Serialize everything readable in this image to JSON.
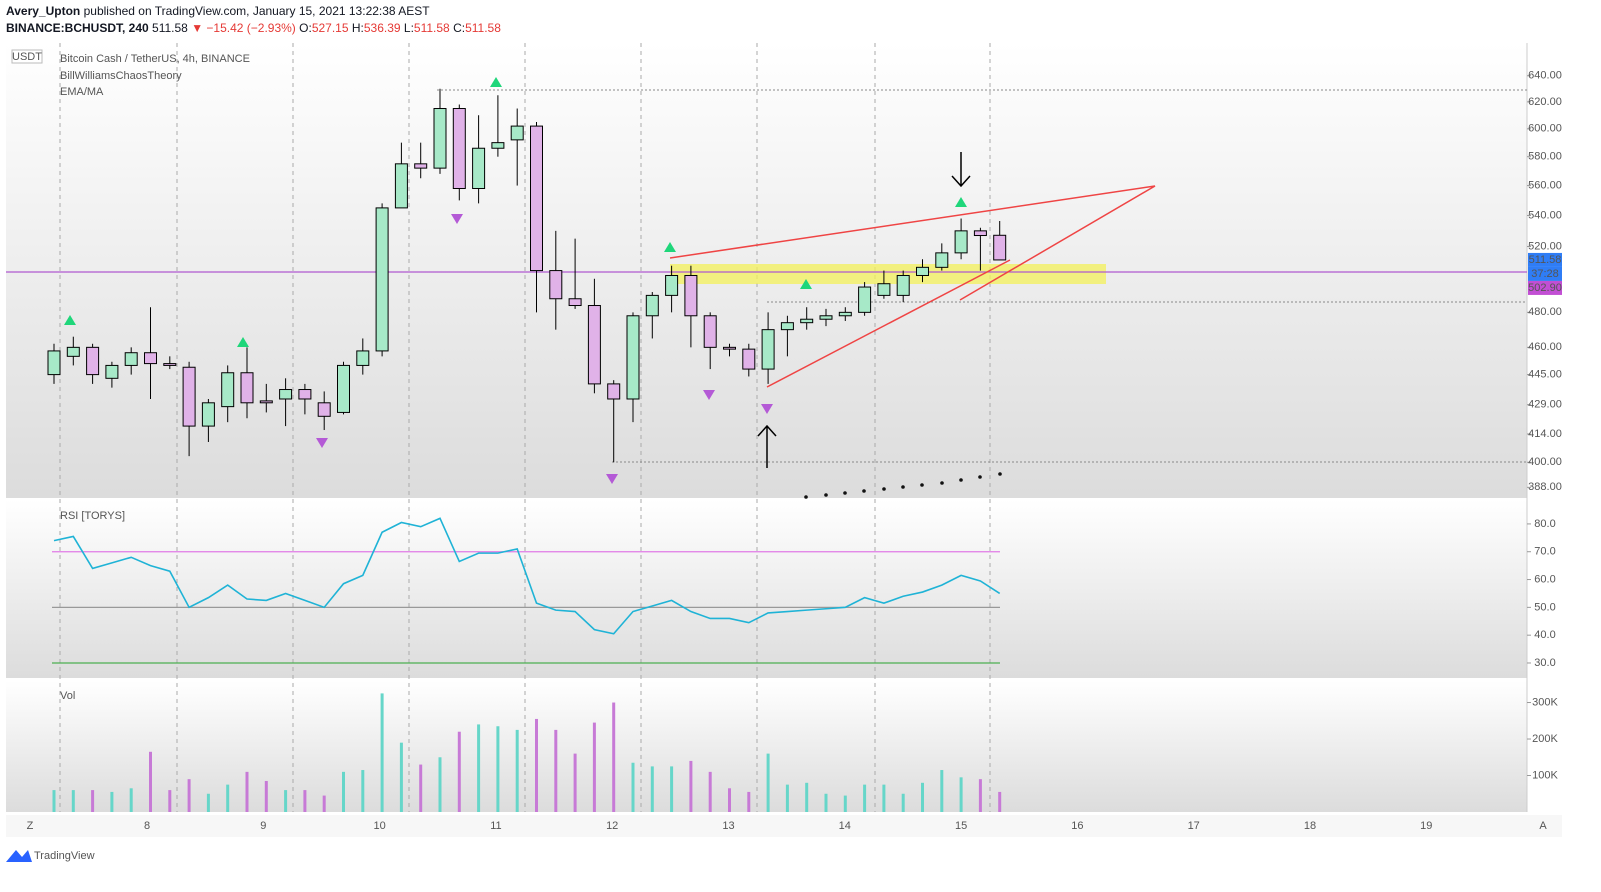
{
  "header": {
    "publisher": "Avery_Upton",
    "published": "published on TradingView.com, January 15, 2021 13:22:38 AEST",
    "symbol": "BINANCE:BCHUSDT, 240",
    "price": "511.58",
    "change": "▼ −15.42 (−2.93%)",
    "ohlc": [
      {
        "label": "O:",
        "value": "527.15"
      },
      {
        "label": "H:",
        "value": "536.39"
      },
      {
        "label": "L:",
        "value": "511.58"
      },
      {
        "label": "C:",
        "value": "511.58"
      }
    ]
  },
  "chart_data": [
    {
      "type": "candlestick",
      "title": "Bitcoin Cash / TetherUS, 4h, BINANCE",
      "indicators": [
        "BillWilliamsChaosTheory",
        "EMA/MA"
      ],
      "unit": "USDT",
      "log_scale": true,
      "up_color": "#a7e9c8",
      "down_color": "#e0b2e8",
      "ylim": [
        383,
        666
      ],
      "yticks": [
        {
          "value": 640,
          "label": "640.00"
        },
        {
          "value": 620,
          "label": "620.00"
        },
        {
          "value": 600,
          "label": "600.00"
        },
        {
          "value": 580,
          "label": "580.00"
        },
        {
          "value": 560,
          "label": "560.00"
        },
        {
          "value": 540,
          "label": "540.00"
        },
        {
          "value": 520,
          "label": "520.00"
        },
        {
          "value": 480,
          "label": "480.00"
        },
        {
          "value": 460,
          "label": "460.00"
        },
        {
          "value": 445,
          "label": "445.00"
        },
        {
          "value": 429,
          "label": "429.00"
        },
        {
          "value": 414,
          "label": "414.00"
        },
        {
          "value": 400,
          "label": "400.00"
        },
        {
          "value": 388,
          "label": "388.00"
        }
      ],
      "last_price": {
        "value": 511.58,
        "label": "511.58"
      },
      "countdown": "37:28",
      "ma_value": {
        "value": 502.9,
        "label": "502.90"
      },
      "candles": {
        "open": [
          445,
          455,
          460,
          443,
          450,
          457,
          451,
          449,
          418,
          428,
          446,
          431,
          432,
          437,
          430,
          425,
          450,
          458,
          545,
          575,
          572,
          615,
          558,
          586,
          592,
          602,
          505,
          488,
          484,
          440,
          432,
          478,
          490,
          502,
          478,
          460,
          459,
          448,
          470,
          474,
          476,
          478,
          480,
          490,
          490,
          502,
          507,
          516,
          530,
          527.15
        ],
        "high": [
          462,
          466,
          462,
          452,
          460,
          483,
          455,
          452,
          432,
          450,
          460,
          440,
          443,
          440,
          436,
          452,
          465,
          548,
          590,
          590,
          630,
          618,
          610,
          625,
          615,
          605,
          530,
          525,
          500,
          442,
          480,
          492,
          508,
          508,
          480,
          462,
          462,
          480,
          478,
          483,
          482,
          483,
          498,
          505,
          505,
          512,
          522,
          538,
          532,
          536.39
        ],
        "low": [
          440,
          450,
          440,
          438,
          445,
          432,
          448,
          403,
          410,
          420,
          422,
          425,
          418,
          424,
          416,
          424,
          445,
          455,
          545,
          565,
          568,
          550,
          548,
          580,
          560,
          480,
          470,
          482,
          435,
          400,
          420,
          465,
          480,
          460,
          448,
          455,
          444,
          440,
          455,
          470,
          472,
          475,
          478,
          488,
          486,
          498,
          505,
          512,
          505,
          511.58
        ],
        "close": [
          458,
          460,
          445,
          450,
          457,
          451,
          450,
          418,
          430,
          446,
          430,
          430,
          437,
          432,
          423,
          450,
          458,
          545,
          575,
          572,
          615,
          558,
          586,
          590,
          602,
          505,
          488,
          484,
          440,
          432,
          478,
          490,
          502,
          478,
          460,
          459,
          448,
          470,
          474,
          476,
          478,
          480,
          495,
          497,
          502,
          507,
          516,
          530,
          527,
          511.58
        ]
      }
    },
    {
      "type": "line",
      "title": "RSI [TORYS]",
      "color": "#1fb3d6",
      "ylim": [
        24.6,
        88.6
      ],
      "yticks": [
        {
          "value": 80,
          "label": "80.0"
        },
        {
          "value": 70,
          "label": "70.0"
        },
        {
          "value": 60,
          "label": "60.0"
        },
        {
          "value": 50,
          "label": "50.0"
        },
        {
          "value": 40,
          "label": "40.0"
        },
        {
          "value": 30,
          "label": "30.0"
        }
      ],
      "levels": [
        {
          "value": 70,
          "color": "#e07be6"
        },
        {
          "value": 50,
          "color": "#999999"
        },
        {
          "value": 30,
          "color": "#4caf50"
        }
      ],
      "values": [
        74,
        75.5,
        64,
        66,
        68,
        65,
        63,
        50,
        53.5,
        58,
        53,
        52.5,
        55,
        52.5,
        50,
        58.5,
        61.5,
        77,
        80.5,
        79,
        82,
        66.5,
        69.5,
        69.5,
        71,
        51.5,
        49,
        48.5,
        42,
        40.5,
        48.5,
        50.5,
        52.5,
        48.5,
        46,
        46,
        44.5,
        48,
        48.5,
        49,
        49.5,
        50,
        53.5,
        51.5,
        54,
        55.5,
        58,
        61.5,
        59.5,
        55
      ]
    },
    {
      "type": "bar",
      "title": "Vol",
      "up_color": "#66d6c9",
      "down_color": "#c77ad6",
      "ylim": [
        0,
        359000
      ],
      "yticks": [
        {
          "value": 300000,
          "label": "300K"
        },
        {
          "value": 200000,
          "label": "200K"
        },
        {
          "value": 100000,
          "label": "100K"
        }
      ],
      "values": [
        60000,
        60000,
        60000,
        55000,
        65000,
        165000,
        60000,
        90000,
        50000,
        75000,
        110000,
        85000,
        60000,
        60000,
        45000,
        110000,
        115000,
        325000,
        190000,
        130000,
        150000,
        220000,
        240000,
        235000,
        225000,
        255000,
        225000,
        160000,
        245000,
        300000,
        135000,
        125000,
        125000,
        140000,
        110000,
        65000,
        55000,
        160000,
        75000,
        80000,
        50000,
        45000,
        75000,
        75000,
        50000,
        80000,
        115000,
        95000,
        90000,
        55000
      ]
    }
  ],
  "x_axis": {
    "labels": [
      "8",
      "9",
      "10",
      "11",
      "12",
      "13",
      "14",
      "15",
      "16",
      "17",
      "18",
      "19"
    ]
  },
  "controls": {
    "left": "Z",
    "right": "A"
  },
  "footer": "TradingView"
}
